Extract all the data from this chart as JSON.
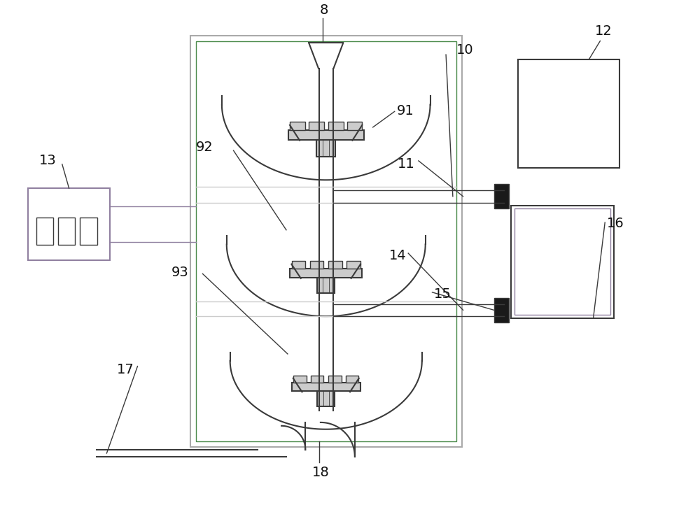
{
  "bg_color": "#ffffff",
  "line_color": "#3a3a3a",
  "gray_line": "#aaaaaa",
  "light_gray": "#cccccc",
  "dark_fill": "#1a1a1a",
  "green_line": "#4a8a4a",
  "purple_line": "#9080a0",
  "label_font": 14,
  "label_color": "#111111"
}
